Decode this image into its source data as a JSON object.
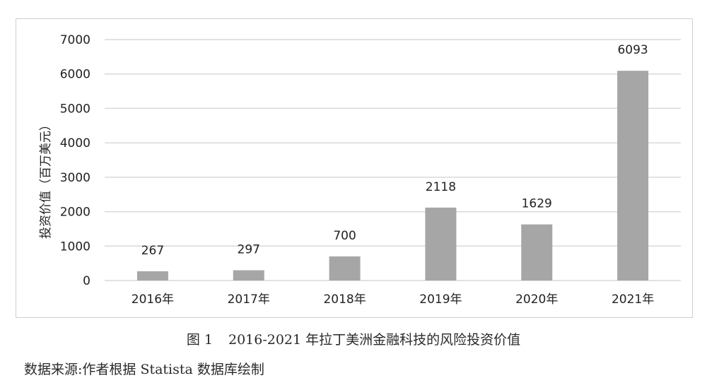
{
  "figure": {
    "number": "图 1",
    "caption": "2016-2021 年拉丁美洲金融科技的风险投资价值",
    "source": "数据来源:作者根据 Statista 数据库绘制"
  },
  "chart_data": {
    "type": "bar",
    "title": "",
    "xlabel": "",
    "ylabel": "投资价值（百万美元）",
    "categories": [
      "2016年",
      "2017年",
      "2018年",
      "2019年",
      "2020年",
      "2021年"
    ],
    "values": [
      267,
      297,
      700,
      2118,
      1629,
      6093
    ],
    "data_labels": [
      "267",
      "297",
      "700",
      "2118",
      "1629",
      "6093"
    ],
    "ylim": [
      0,
      7000
    ],
    "yticks": [
      0,
      1000,
      2000,
      3000,
      4000,
      5000,
      6000,
      7000
    ],
    "ytick_labels": [
      "0",
      "1000",
      "2000",
      "3000",
      "4000",
      "5000",
      "6000",
      "7000"
    ],
    "grid": true,
    "legend": "none",
    "bar_color": "#a6a6a6",
    "grid_color": "#d9d9d9"
  }
}
